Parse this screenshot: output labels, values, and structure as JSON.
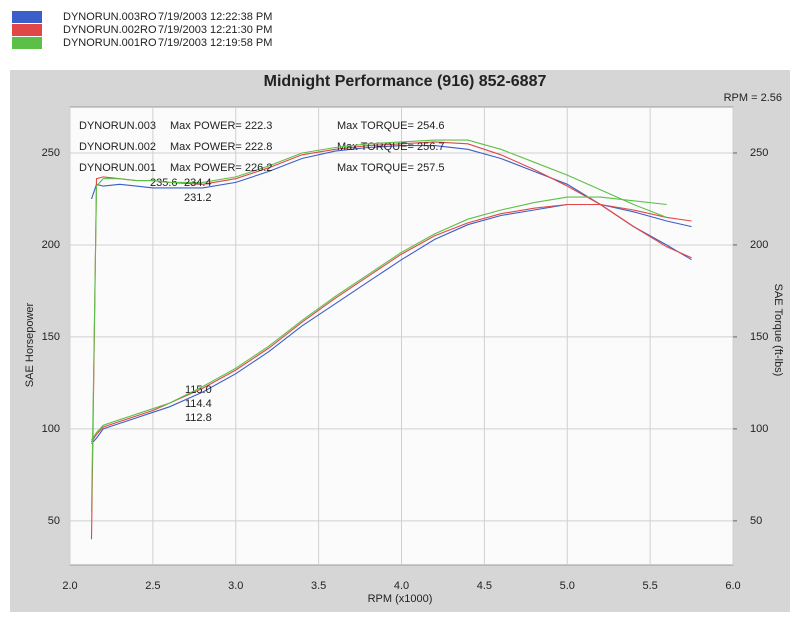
{
  "chart_data": {
    "type": "line",
    "title": "Midnight Performance (916) 852-6887",
    "ratio_label": "RPM = 2.56",
    "x_label": "RPM (x1000)",
    "y_label": "SAE Horsepower",
    "y2_label": "SAE Torque (ft-lbs)",
    "xlim": [
      2.0,
      6.0
    ],
    "xticks": [
      {
        "value": 2,
        "label": "2.0"
      },
      2.5,
      {
        "value": 3,
        "label": "3.0"
      },
      3.5,
      {
        "value": 4,
        "label": "4.0"
      },
      4.5,
      {
        "value": 5,
        "label": "5.0"
      },
      5.5,
      {
        "value": 6,
        "label": "6.0"
      }
    ],
    "ylim": [
      26,
      275
    ],
    "yticks": [
      50,
      100,
      150,
      200,
      250
    ],
    "y2lim": [
      26,
      275
    ],
    "y2ticks": [
      50,
      100,
      150,
      200,
      250
    ],
    "grid": true,
    "x": [
      2.13,
      2.16,
      2.2,
      2.3,
      2.4,
      2.5,
      2.6,
      2.8,
      3.0,
      3.2,
      3.4,
      3.6,
      3.8,
      4.0,
      4.2,
      4.4,
      4.6,
      4.8,
      5.0,
      5.2,
      5.4,
      5.6,
      5.75
    ],
    "series": [
      {
        "name": "DYNORUN.003",
        "file": "DYNORUN.003RO",
        "date": "7/19/2003 12:22:38 PM",
        "color": "#3a5fc8",
        "max_power_label": "Max POWER= 222.3",
        "max_torque_label": "Max TORQUE= 254.6",
        "torque_point_label": "231.2",
        "power_point_label": "112.8",
        "values": [
          92,
          95,
          100,
          103,
          106,
          109,
          112,
          120,
          130,
          142,
          156,
          168,
          180,
          192,
          203,
          211,
          216,
          219,
          222,
          222,
          218,
          213,
          210
        ],
        "torque": [
          225,
          233,
          232,
          233,
          232,
          231,
          231,
          231,
          234,
          240,
          247,
          251,
          253,
          254,
          254,
          252,
          247,
          240,
          233,
          222,
          210,
          200,
          192
        ]
      },
      {
        "name": "DYNORUN.002",
        "file": "DYNORUN.002RO",
        "date": "7/19/2003 12:21:30 PM",
        "color": "#e04848",
        "max_power_label": "Max POWER= 222.8",
        "max_torque_label": "Max TORQUE= 256.7",
        "torque_point_label": "235.6",
        "power_point_label": "115.0",
        "values": [
          93,
          97,
          101,
          104,
          107,
          110,
          114,
          122,
          132,
          144,
          158,
          171,
          183,
          195,
          205,
          212,
          217,
          220,
          222,
          222,
          219,
          215,
          213
        ],
        "torque": [
          40,
          236,
          237,
          236,
          235,
          235,
          234,
          233,
          236,
          242,
          249,
          252,
          254,
          255,
          256,
          255,
          249,
          241,
          232,
          222,
          210,
          199,
          193
        ]
      },
      {
        "name": "DYNORUN.001",
        "file": "DYNORUN.001RO",
        "date": "7/19/2003 12:19:58 PM",
        "color": "#5cc048",
        "max_power_label": "Max POWER= 226.2",
        "max_torque_label": "Max TORQUE= 257.5",
        "torque_point_label": "234.4",
        "power_point_label": "114.4",
        "values": [
          94,
          98,
          102,
          105,
          108,
          111,
          114,
          123,
          133,
          145,
          159,
          172,
          184,
          196,
          206,
          214,
          219,
          223,
          226,
          226,
          224,
          222,
          null
        ],
        "torque": [
          55,
          232,
          236,
          236,
          235,
          235,
          234,
          234,
          237,
          243,
          250,
          253,
          255,
          256,
          257,
          257,
          252,
          245,
          238,
          230,
          222,
          215,
          null
        ]
      }
    ]
  }
}
